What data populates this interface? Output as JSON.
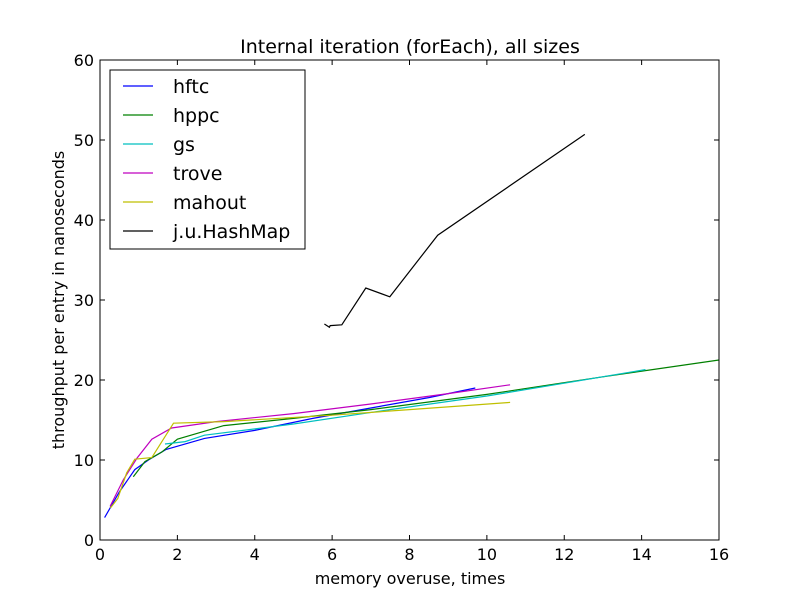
{
  "chart_data": {
    "type": "line",
    "title": "Internal iteration (forEach), all sizes",
    "xlabel": "memory overuse, times",
    "ylabel": "throughput per entry in nanoseconds",
    "xlim": [
      0,
      16
    ],
    "ylim": [
      0,
      60
    ],
    "xticks": [
      0,
      2,
      4,
      6,
      8,
      10,
      12,
      14,
      16
    ],
    "yticks": [
      0,
      10,
      20,
      30,
      40,
      50,
      60
    ],
    "grid": false,
    "legend_position": "top-left",
    "series": [
      {
        "name": "hftc",
        "color": "#0000ff",
        "points": [
          [
            0.12,
            2.8
          ],
          [
            0.5,
            6
          ],
          [
            0.9,
            8.8
          ],
          [
            1.25,
            10
          ],
          [
            1.7,
            11.3
          ],
          [
            2.7,
            12.7
          ],
          [
            4,
            13.7
          ],
          [
            5.5,
            15.2
          ],
          [
            7,
            16.5
          ],
          [
            8.5,
            17.8
          ],
          [
            9.7,
            19
          ]
        ]
      },
      {
        "name": "hppc",
        "color": "#008000",
        "points": [
          [
            0.86,
            7.9
          ],
          [
            1.16,
            9.8
          ],
          [
            1.6,
            11
          ],
          [
            2,
            12.6
          ],
          [
            3.2,
            14.3
          ],
          [
            5,
            15.2
          ],
          [
            7,
            16.3
          ],
          [
            10,
            18.2
          ],
          [
            13,
            20.4
          ],
          [
            16,
            22.5
          ]
        ]
      },
      {
        "name": "gs",
        "color": "#00bfbf",
        "points": [
          [
            1.68,
            12
          ],
          [
            2.2,
            12.3
          ],
          [
            2.7,
            13.1
          ],
          [
            5,
            14.5
          ],
          [
            7.5,
            16.3
          ],
          [
            10,
            18
          ],
          [
            12,
            19.6
          ],
          [
            14.1,
            21.3
          ]
        ]
      },
      {
        "name": "trove",
        "color": "#bf00bf",
        "points": [
          [
            0.26,
            4.2
          ],
          [
            0.6,
            7.5
          ],
          [
            0.95,
            10.2
          ],
          [
            1.34,
            12.6
          ],
          [
            1.85,
            14
          ],
          [
            3,
            14.8
          ],
          [
            5,
            15.8
          ],
          [
            7,
            17
          ],
          [
            9,
            18.3
          ],
          [
            10.6,
            19.4
          ]
        ]
      },
      {
        "name": "mahout",
        "color": "#bfbf00",
        "points": [
          [
            0.27,
            4
          ],
          [
            0.46,
            5.2
          ],
          [
            0.69,
            8.4
          ],
          [
            0.9,
            10.1
          ],
          [
            1.34,
            10.3
          ],
          [
            1.9,
            14.6
          ],
          [
            3.2,
            14.8
          ],
          [
            6,
            15.6
          ],
          [
            8,
            16.3
          ],
          [
            10.6,
            17.2
          ]
        ]
      },
      {
        "name": "j.u.HashMap",
        "color": "#000000",
        "points": [
          [
            5.8,
            27
          ],
          [
            5.93,
            26.6
          ],
          [
            5.95,
            26.8
          ],
          [
            6.25,
            26.9
          ],
          [
            6.87,
            31.5
          ],
          [
            7.49,
            30.4
          ],
          [
            8.73,
            38.1
          ],
          [
            12.53,
            50.7
          ]
        ]
      }
    ]
  }
}
